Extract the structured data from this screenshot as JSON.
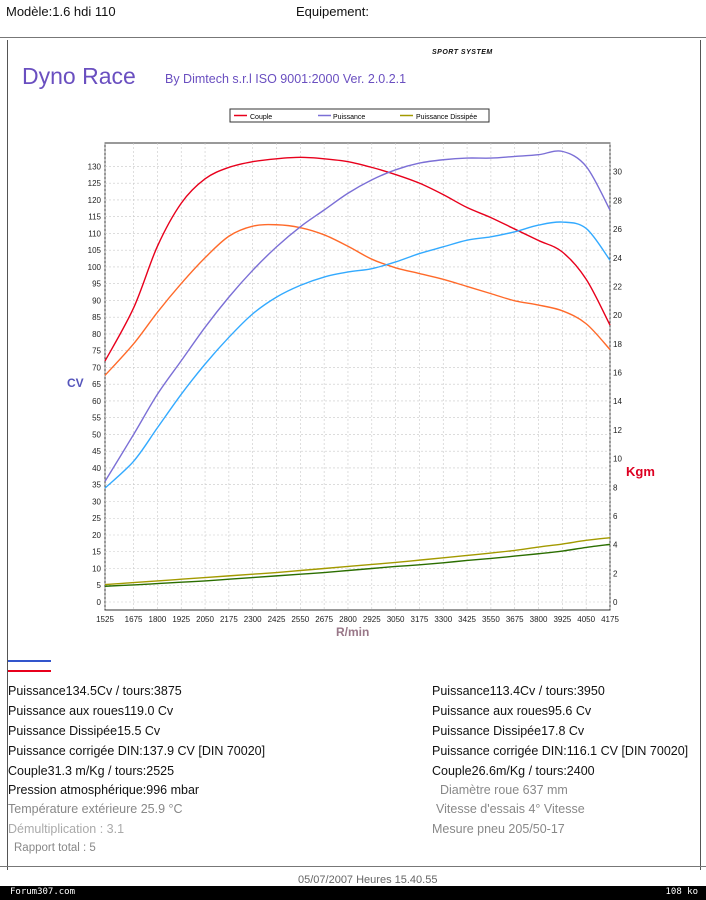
{
  "header": {
    "model": "Modèle:1.6 hdi 110",
    "equipment": "Equipement:"
  },
  "brand": {
    "logo_text": "SPORT SYSTEM",
    "title": "Dyno Race",
    "subtitle": "By Dimtech s.r.l  ISO 9001:2000  Ver. 2.0.2.1"
  },
  "colors": {
    "couple": "#e8001c",
    "puissance": "#7b6fd6",
    "dissipee": "#a39a00",
    "run2_couple": "#ff6a2a",
    "run2_puissance": "#33aaff",
    "run2_dissipee": "#2b6e00",
    "axis_cv": "#5555bb",
    "axis_kgm": "#dd0022",
    "axis_rpm": "#997788"
  },
  "chart_data": {
    "type": "line",
    "legend": [
      "Couple",
      "Puissance",
      "Puissance Dissipée"
    ],
    "legend_placement": "top-center",
    "xlabel": "R/min",
    "ylabel_left": "CV",
    "ylabel_right": "Kgm",
    "x_ticks": [
      "1525",
      "1675",
      "1800",
      "1925",
      "2050",
      "2175",
      "2300",
      "2425",
      "2550",
      "2675",
      "2800",
      "2925",
      "3050",
      "3175",
      "3300",
      "3425",
      "3550",
      "3675",
      "3800",
      "3925",
      "4050",
      "4175"
    ],
    "y_left_ticks": [
      "0",
      "5",
      "10",
      "15",
      "20",
      "25",
      "30",
      "35",
      "40",
      "45",
      "50",
      "55",
      "60",
      "65",
      "70",
      "75",
      "80",
      "85",
      "90",
      "95",
      "100",
      "105",
      "110",
      "115",
      "120",
      "125",
      "130"
    ],
    "y_right_ticks": [
      "0",
      "2",
      "4",
      "6",
      "8",
      "10",
      "12",
      "14",
      "16",
      "18",
      "20",
      "22",
      "24",
      "26",
      "28",
      "30"
    ],
    "xlim": [
      1525,
      4175
    ],
    "ylim_left": [
      0,
      137
    ],
    "ylim_right": [
      0,
      32
    ],
    "grid": true,
    "series": [
      {
        "name": "Couple",
        "axis": "right",
        "color": "#e8001c",
        "x": [
          1525,
          1675,
          1800,
          1925,
          2050,
          2175,
          2300,
          2425,
          2550,
          2675,
          2800,
          2925,
          3050,
          3175,
          3300,
          3425,
          3550,
          3675,
          3800,
          3925,
          4050,
          4175
        ],
        "y": [
          16.8,
          20.5,
          24.8,
          27.8,
          29.5,
          30.3,
          30.7,
          30.9,
          31.0,
          30.9,
          30.7,
          30.3,
          29.8,
          29.2,
          28.4,
          27.5,
          26.8,
          26.0,
          25.2,
          24.4,
          22.5,
          19.3
        ]
      },
      {
        "axis": "right",
        "color": "#ff6a2a",
        "x": [
          1525,
          1675,
          1800,
          1925,
          2050,
          2175,
          2300,
          2425,
          2550,
          2675,
          2800,
          2925,
          3050,
          3175,
          3300,
          3425,
          3550,
          3675,
          3800,
          3925,
          4050,
          4175
        ],
        "y": [
          15.8,
          18.0,
          20.2,
          22.2,
          24.0,
          25.5,
          26.2,
          26.3,
          26.1,
          25.6,
          24.8,
          23.9,
          23.3,
          22.9,
          22.5,
          22.0,
          21.5,
          21.0,
          20.7,
          20.3,
          19.4,
          17.6
        ]
      },
      {
        "name": "Puissance",
        "axis": "left",
        "color": "#7b6fd6",
        "x": [
          1525,
          1675,
          1800,
          1925,
          2050,
          2175,
          2300,
          2425,
          2550,
          2675,
          2800,
          2925,
          3050,
          3175,
          3300,
          3425,
          3550,
          3675,
          3800,
          3925,
          4050,
          4175
        ],
        "y": [
          36,
          50,
          62,
          72,
          82,
          91,
          99,
          106,
          112,
          117,
          122,
          126,
          129,
          131,
          132,
          132.5,
          132.5,
          133,
          133.5,
          134.5,
          130,
          117
        ]
      },
      {
        "axis": "left",
        "color": "#33aaff",
        "x": [
          1525,
          1675,
          1800,
          1925,
          2050,
          2175,
          2300,
          2425,
          2550,
          2675,
          2800,
          2925,
          3050,
          3175,
          3300,
          3425,
          3550,
          3675,
          3800,
          3925,
          4050,
          4175
        ],
        "y": [
          34,
          42,
          52,
          62,
          71,
          79,
          86,
          91,
          94.5,
          97,
          98.5,
          99.5,
          101.5,
          104,
          106,
          108,
          109,
          110.5,
          112.5,
          113.4,
          111.5,
          102
        ]
      },
      {
        "name": "Puissance Dissipée",
        "axis": "left",
        "color": "#a39a00",
        "x": [
          1525,
          1675,
          1800,
          1925,
          2050,
          2175,
          2300,
          2425,
          2550,
          2675,
          2800,
          2925,
          3050,
          3175,
          3300,
          3425,
          3550,
          3675,
          3800,
          3925,
          4050,
          4175
        ],
        "y": [
          5.2,
          5.8,
          6.3,
          6.8,
          7.3,
          7.8,
          8.3,
          8.8,
          9.4,
          10.0,
          10.6,
          11.2,
          11.8,
          12.5,
          13.2,
          13.9,
          14.6,
          15.4,
          16.4,
          17.3,
          18.4,
          19.2
        ]
      },
      {
        "axis": "left",
        "color": "#2b6e00",
        "x": [
          1525,
          1675,
          1800,
          1925,
          2050,
          2175,
          2300,
          2425,
          2550,
          2675,
          2800,
          2925,
          3050,
          3175,
          3300,
          3425,
          3550,
          3675,
          3800,
          3925,
          4050,
          4175
        ],
        "y": [
          4.7,
          5.1,
          5.5,
          5.9,
          6.3,
          6.8,
          7.3,
          7.8,
          8.3,
          8.8,
          9.4,
          10.0,
          10.6,
          11.1,
          11.7,
          12.4,
          13.0,
          13.7,
          14.4,
          15.2,
          16.3,
          17.2
        ]
      }
    ]
  },
  "results_left": [
    "Puissance134.5Cv / tours:3875",
    "Puissance aux roues119.0 Cv",
    "Puissance Dissipée15.5 Cv",
    "Puissance corrigée DIN:137.9 CV  [DIN 70020]",
    "Couple31.3 m/Kg / tours:2525"
  ],
  "results_right": [
    "Puissance113.4Cv / tours:3950",
    "Puissance aux roues95.6 Cv",
    "Puissance Dissipée17.8 Cv",
    "Puissance corrigée DIN:116.1 CV  [DIN 70020]",
    "Couple26.6m/Kg / tours:2400"
  ],
  "conditions_left": [
    "Pression atmosphérique:996 mbar",
    "Température extérieure 25.9 °C",
    "Démultiplication : 3.1",
    "Rapport total : 5"
  ],
  "conditions_right": [
    "Diamètre roue 637 mm",
    "Vitesse d'essais 4° Vitesse",
    "Mesure pneu 205/50-17"
  ],
  "footer": {
    "datetime": "05/07/2007 Heures  15.40.55",
    "forum": "Forum307.com",
    "size": "108 ko"
  }
}
